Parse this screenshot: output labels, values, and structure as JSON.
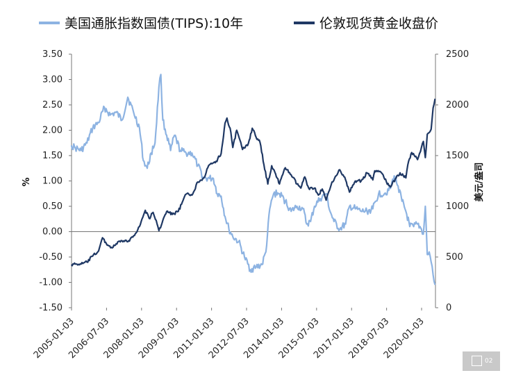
{
  "chart_data": {
    "type": "line",
    "title": "",
    "xlabel": "",
    "ylabel_left": "%",
    "ylabel_right": "美元/盎司",
    "left_axis": {
      "min": -1.5,
      "max": 3.5,
      "step": 0.5,
      "tick_labels": [
        "-1.50",
        "-1.00",
        "-0.50",
        "0.00",
        "0.50",
        "1.00",
        "1.50",
        "2.00",
        "2.50",
        "3.00",
        "3.50"
      ]
    },
    "right_axis": {
      "min": 0,
      "max": 2500,
      "step": 500,
      "tick_labels": [
        "0",
        "500",
        "1000",
        "1500",
        "2000",
        "2500"
      ]
    },
    "x_tick_labels": [
      "2005-01-03",
      "2006-07-03",
      "2008-01-03",
      "2009-07-03",
      "2011-01-03",
      "2012-07-03",
      "2014-01-03",
      "2015-07-03",
      "2017-01-03",
      "2018-07-03",
      "2020-01-03"
    ],
    "x_range": [
      "2005-01-03",
      "2020-08-07"
    ],
    "series": [
      {
        "name": "美国通胀指数国债(TIPS):10年",
        "axis": "left",
        "color": "#8db3e2",
        "points": [
          [
            "2005-01",
            1.7
          ],
          [
            "2005-03",
            1.65
          ],
          [
            "2005-06",
            1.6
          ],
          [
            "2005-09",
            1.75
          ],
          [
            "2005-12",
            2.05
          ],
          [
            "2006-03",
            2.15
          ],
          [
            "2006-06",
            2.45
          ],
          [
            "2006-09",
            2.3
          ],
          [
            "2006-12",
            2.35
          ],
          [
            "2007-03",
            2.2
          ],
          [
            "2007-06",
            2.65
          ],
          [
            "2007-09",
            2.35
          ],
          [
            "2007-12",
            2.05
          ],
          [
            "2008-02",
            1.4
          ],
          [
            "2008-04",
            1.25
          ],
          [
            "2008-06",
            1.55
          ],
          [
            "2008-08",
            1.75
          ],
          [
            "2008-10",
            2.85
          ],
          [
            "2008-11",
            3.1
          ],
          [
            "2008-12",
            2.2
          ],
          [
            "2009-02",
            1.9
          ],
          [
            "2009-04",
            1.6
          ],
          [
            "2009-06",
            1.9
          ],
          [
            "2009-09",
            1.6
          ],
          [
            "2009-12",
            1.55
          ],
          [
            "2010-03",
            1.55
          ],
          [
            "2010-06",
            1.3
          ],
          [
            "2010-09",
            1.05
          ],
          [
            "2010-12",
            1.05
          ],
          [
            "2011-02",
            1.05
          ],
          [
            "2011-04",
            0.75
          ],
          [
            "2011-06",
            0.7
          ],
          [
            "2011-08",
            0.3
          ],
          [
            "2011-10",
            0.05
          ],
          [
            "2011-12",
            -0.1
          ],
          [
            "2012-03",
            -0.2
          ],
          [
            "2012-06",
            -0.5
          ],
          [
            "2012-09",
            -0.75
          ],
          [
            "2012-12",
            -0.7
          ],
          [
            "2013-03",
            -0.65
          ],
          [
            "2013-05",
            -0.4
          ],
          [
            "2013-07",
            0.45
          ],
          [
            "2013-09",
            0.75
          ],
          [
            "2013-12",
            0.75
          ],
          [
            "2014-03",
            0.6
          ],
          [
            "2014-06",
            0.4
          ],
          [
            "2014-09",
            0.5
          ],
          [
            "2014-12",
            0.45
          ],
          [
            "2015-02",
            0.15
          ],
          [
            "2015-04",
            0.2
          ],
          [
            "2015-06",
            0.5
          ],
          [
            "2015-09",
            0.65
          ],
          [
            "2015-12",
            0.75
          ],
          [
            "2016-02",
            0.4
          ],
          [
            "2016-04",
            0.2
          ],
          [
            "2016-07",
            0.05
          ],
          [
            "2016-10",
            0.15
          ],
          [
            "2016-12",
            0.5
          ],
          [
            "2017-03",
            0.45
          ],
          [
            "2017-06",
            0.4
          ],
          [
            "2017-09",
            0.4
          ],
          [
            "2017-12",
            0.45
          ],
          [
            "2018-03",
            0.75
          ],
          [
            "2018-06",
            0.75
          ],
          [
            "2018-09",
            0.85
          ],
          [
            "2018-11",
            1.1
          ],
          [
            "2019-01",
            0.9
          ],
          [
            "2019-03",
            0.6
          ],
          [
            "2019-05",
            0.4
          ],
          [
            "2019-07",
            0.1
          ],
          [
            "2019-09",
            0.1
          ],
          [
            "2019-11",
            0.15
          ],
          [
            "2020-01",
            0.05
          ],
          [
            "2020-02",
            -0.05
          ],
          [
            "2020-03",
            0.5
          ],
          [
            "2020-04",
            -0.45
          ],
          [
            "2020-05",
            -0.4
          ],
          [
            "2020-06",
            -0.6
          ],
          [
            "2020-07",
            -0.85
          ],
          [
            "2020-08",
            -1.05
          ]
        ]
      },
      {
        "name": "伦敦现货黄金收盘价",
        "axis": "right",
        "color": "#1f3864",
        "points": [
          [
            "2005-01",
            425
          ],
          [
            "2005-03",
            430
          ],
          [
            "2005-06",
            430
          ],
          [
            "2005-09",
            450
          ],
          [
            "2005-12",
            510
          ],
          [
            "2006-03",
            560
          ],
          [
            "2006-05",
            690
          ],
          [
            "2006-07",
            630
          ],
          [
            "2006-10",
            590
          ],
          [
            "2006-12",
            630
          ],
          [
            "2007-03",
            660
          ],
          [
            "2007-06",
            650
          ],
          [
            "2007-09",
            710
          ],
          [
            "2007-12",
            800
          ],
          [
            "2008-03",
            960
          ],
          [
            "2008-05",
            880
          ],
          [
            "2008-07",
            940
          ],
          [
            "2008-09",
            830
          ],
          [
            "2008-10",
            760
          ],
          [
            "2008-12",
            860
          ],
          [
            "2009-02",
            950
          ],
          [
            "2009-05",
            920
          ],
          [
            "2009-08",
            950
          ],
          [
            "2009-10",
            1040
          ],
          [
            "2009-12",
            1120
          ],
          [
            "2010-03",
            1110
          ],
          [
            "2010-06",
            1240
          ],
          [
            "2010-09",
            1280
          ],
          [
            "2010-12",
            1410
          ],
          [
            "2011-03",
            1430
          ],
          [
            "2011-06",
            1520
          ],
          [
            "2011-08",
            1820
          ],
          [
            "2011-09",
            1870
          ],
          [
            "2011-11",
            1730
          ],
          [
            "2011-12",
            1580
          ],
          [
            "2012-02",
            1750
          ],
          [
            "2012-05",
            1560
          ],
          [
            "2012-08",
            1620
          ],
          [
            "2012-10",
            1770
          ],
          [
            "2012-12",
            1680
          ],
          [
            "2013-02",
            1630
          ],
          [
            "2013-04",
            1410
          ],
          [
            "2013-06",
            1220
          ],
          [
            "2013-08",
            1400
          ],
          [
            "2013-10",
            1320
          ],
          [
            "2013-12",
            1220
          ],
          [
            "2014-03",
            1380
          ],
          [
            "2014-06",
            1310
          ],
          [
            "2014-09",
            1220
          ],
          [
            "2014-11",
            1180
          ],
          [
            "2015-01",
            1290
          ],
          [
            "2015-03",
            1180
          ],
          [
            "2015-06",
            1180
          ],
          [
            "2015-08",
            1110
          ],
          [
            "2015-10",
            1170
          ],
          [
            "2015-12",
            1060
          ],
          [
            "2016-03",
            1240
          ],
          [
            "2016-07",
            1360
          ],
          [
            "2016-10",
            1260
          ],
          [
            "2016-12",
            1140
          ],
          [
            "2017-03",
            1250
          ],
          [
            "2017-06",
            1250
          ],
          [
            "2017-09",
            1330
          ],
          [
            "2017-12",
            1260
          ],
          [
            "2018-01",
            1350
          ],
          [
            "2018-04",
            1340
          ],
          [
            "2018-07",
            1240
          ],
          [
            "2018-09",
            1190
          ],
          [
            "2018-12",
            1280
          ],
          [
            "2019-02",
            1330
          ],
          [
            "2019-05",
            1280
          ],
          [
            "2019-06",
            1410
          ],
          [
            "2019-08",
            1530
          ],
          [
            "2019-11",
            1460
          ],
          [
            "2019-12",
            1520
          ],
          [
            "2020-01",
            1580
          ],
          [
            "2020-02",
            1640
          ],
          [
            "2020-03",
            1480
          ],
          [
            "2020-04",
            1710
          ],
          [
            "2020-06",
            1760
          ],
          [
            "2020-07",
            1970
          ],
          [
            "2020-08",
            2060
          ]
        ]
      }
    ]
  },
  "badge": {
    "number": "02"
  }
}
